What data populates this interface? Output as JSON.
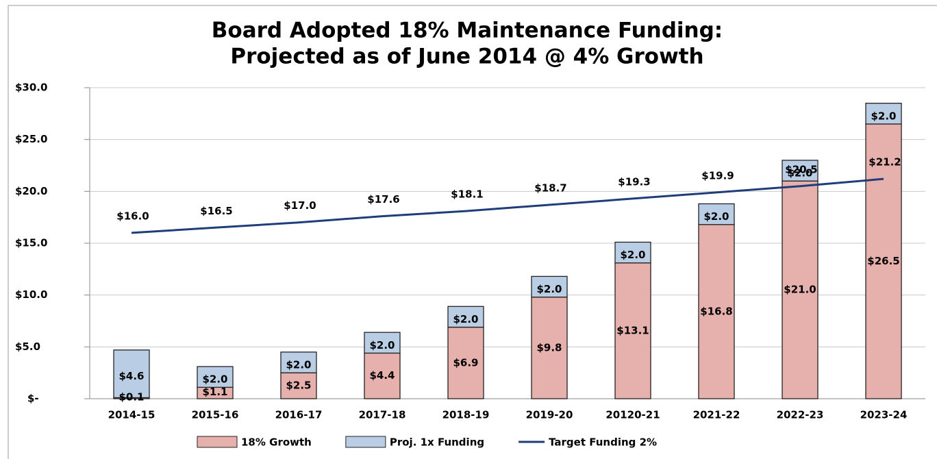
{
  "chart_data": {
    "type": "bar",
    "stacked": true,
    "title": [
      "Board Adopted 18% Maintenance Funding:",
      "Projected as of June 2014 @ 4% Growth"
    ],
    "categories": [
      "2014-15",
      "2015-16",
      "2016-17",
      "2017-18",
      "2018-19",
      "2019-20",
      "20120-21",
      "2021-22",
      "2022-23",
      "2023-24"
    ],
    "series": [
      {
        "name": "18% Growth",
        "type": "bar",
        "color": "#e6b0ad",
        "values": [
          0.1,
          1.1,
          2.5,
          4.4,
          6.9,
          9.8,
          13.1,
          16.8,
          21.0,
          26.5
        ],
        "value_labels": [
          "$0.1",
          "$1.1",
          "$2.5",
          "$4.4",
          "$6.9",
          "$9.8",
          "$13.1",
          "$16.8",
          "$21.0",
          "$26.5"
        ]
      },
      {
        "name": "Proj. 1x Funding",
        "type": "bar",
        "color": "#b9cde5",
        "values": [
          4.6,
          2.0,
          2.0,
          2.0,
          2.0,
          2.0,
          2.0,
          2.0,
          2.0,
          2.0
        ],
        "value_labels": [
          "$4.6",
          "$2.0",
          "$2.0",
          "$2.0",
          "$2.0",
          "$2.0",
          "$2.0",
          "$2.0",
          "$2.0",
          "$2.0"
        ]
      },
      {
        "name": "Target Funding 2%",
        "type": "line",
        "color": "#1f3d7a",
        "values": [
          16.0,
          16.5,
          17.0,
          17.6,
          18.1,
          18.7,
          19.3,
          19.9,
          20.5,
          21.2
        ],
        "value_labels": [
          "$16.0",
          "$16.5",
          "$17.0",
          "$17.6",
          "$18.1",
          "$18.7",
          "$19.3",
          "$19.9",
          "$20.5",
          "$21.2"
        ]
      }
    ],
    "ylim": [
      0,
      30
    ],
    "yticks": [
      {
        "value": 0,
        "label": "$-"
      },
      {
        "value": 5,
        "label": "$5.0"
      },
      {
        "value": 10,
        "label": "$10.0"
      },
      {
        "value": 15,
        "label": "$15.0"
      },
      {
        "value": 20,
        "label": "$20.0"
      },
      {
        "value": 25,
        "label": "$25.0"
      },
      {
        "value": 30,
        "label": "$30.0"
      }
    ],
    "grid": true,
    "legend": "bottom"
  }
}
